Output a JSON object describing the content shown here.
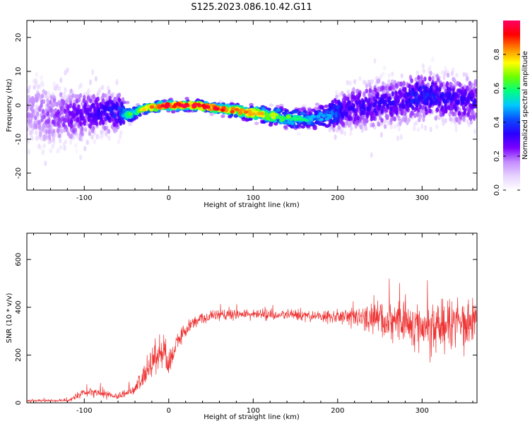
{
  "title": "S125.2023.086.10.42.G11",
  "chart_data": [
    {
      "type": "heatmap",
      "xlabel": "Height of straight line (km)",
      "ylabel": "Frequency (Hz)",
      "xlim": [
        -168,
        365
      ],
      "ylim": [
        -25,
        25
      ],
      "xticks": [
        -100,
        0,
        100,
        200,
        300
      ],
      "yticks": [
        -20,
        -10,
        0,
        10,
        20
      ],
      "colorbar": {
        "label": "Normalized spectral amplitude",
        "range": [
          0,
          1
        ],
        "ticks": [
          "0.0",
          "0.2",
          "0.4",
          "0.6",
          "0.8"
        ],
        "colormap": [
          "#ffffff",
          "#e6d2ff",
          "#c48cff",
          "#7a00ff",
          "#2a00ff",
          "#0a4cff",
          "#00c8ff",
          "#00ff80",
          "#6aff00",
          "#ffff00",
          "#ff8800",
          "#ff0000",
          "#ff0066"
        ]
      },
      "ridge": {
        "x": [
          -168,
          -140,
          -110,
          -80,
          -60,
          -45,
          -30,
          0,
          30,
          60,
          90,
          120,
          150,
          170,
          190,
          210,
          240,
          270,
          300,
          330,
          365
        ],
        "freq": [
          -2,
          -3,
          -3,
          -2,
          -2,
          -3,
          -1,
          0,
          0,
          -1,
          -2,
          -3,
          -4,
          -4,
          -3,
          -1,
          0,
          1,
          3,
          2,
          1
        ],
        "peak_amplitude": [
          0.15,
          0.2,
          0.25,
          0.3,
          0.35,
          0.6,
          0.75,
          0.9,
          0.9,
          0.85,
          0.8,
          0.7,
          0.55,
          0.5,
          0.45,
          0.3,
          0.3,
          0.3,
          0.35,
          0.3,
          0.3
        ],
        "spread_hz": [
          10,
          9,
          8,
          6,
          6,
          2,
          1.5,
          1.5,
          1.5,
          1.5,
          2,
          2.5,
          3,
          3,
          4,
          6,
          7,
          7,
          7,
          7,
          7
        ]
      }
    },
    {
      "type": "line",
      "xlabel": "Height of straight line (km)",
      "ylabel": "SNR (10 * v/v)",
      "xlim": [
        -168,
        365
      ],
      "ylim": [
        0,
        710
      ],
      "xticks": [
        -100,
        0,
        100,
        200,
        300
      ],
      "yticks": [
        0,
        200,
        400,
        600
      ],
      "color": "#ee3333",
      "envelope": {
        "x": [
          -168,
          -120,
          -100,
          -80,
          -60,
          -40,
          -25,
          -15,
          -5,
          0,
          10,
          30,
          60,
          100,
          150,
          200,
          230,
          260,
          300,
          330,
          365
        ],
        "mean": [
          8,
          10,
          40,
          40,
          25,
          60,
          130,
          200,
          220,
          150,
          260,
          340,
          370,
          370,
          365,
          360,
          355,
          350,
          320,
          330,
          350
        ],
        "noise": [
          8,
          10,
          40,
          40,
          20,
          40,
          80,
          120,
          140,
          100,
          60,
          40,
          40,
          40,
          40,
          50,
          90,
          160,
          200,
          200,
          180
        ]
      }
    }
  ]
}
